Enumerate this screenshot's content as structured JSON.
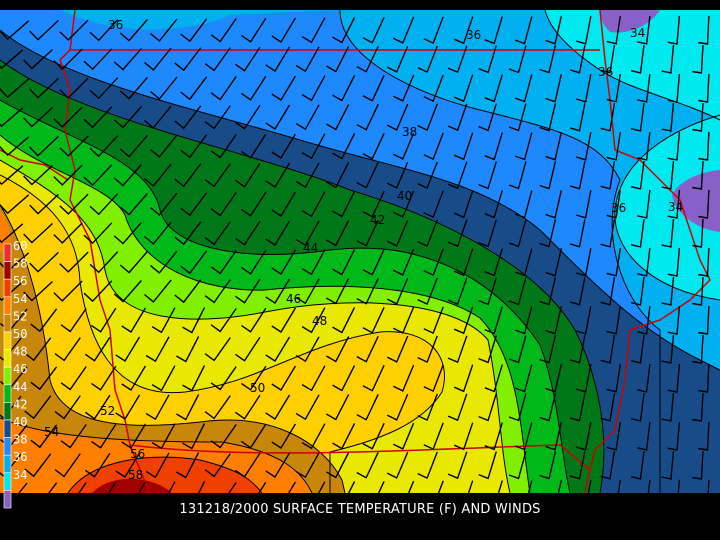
{
  "title": "131218/2000 SURFACE TEMPERATURE (F) AND WINDS",
  "legend": [
    {
      "label": "60",
      "color": "#e83030"
    },
    {
      "label": "58",
      "color": "#a00000"
    },
    {
      "label": "56",
      "color": "#f04000"
    },
    {
      "label": "54",
      "color": "#ff8000"
    },
    {
      "label": "52",
      "color": "#c8860a"
    },
    {
      "label": "50",
      "color": "#ffd000"
    },
    {
      "label": "48",
      "color": "#e8e800"
    },
    {
      "label": "46",
      "color": "#80f000"
    },
    {
      "label": "44",
      "color": "#00b818"
    },
    {
      "label": "42",
      "color": "#007818"
    },
    {
      "label": "40",
      "color": "#184c88"
    },
    {
      "label": "38",
      "color": "#1e88ff"
    },
    {
      "label": "36",
      "color": "#00b0f0"
    },
    {
      "label": "34",
      "color": "#00e8f0"
    },
    {
      "label": "",
      "color": "#8860c8"
    }
  ],
  "contour_labels": [
    "36",
    "36",
    "34",
    "36",
    "38",
    "40",
    "42",
    "44",
    "46",
    "48",
    "50",
    "52",
    "54",
    "56",
    "58",
    "36",
    "34"
  ],
  "colors": {
    "border": "#d00000",
    "contour": "#000000",
    "barb": "#000000"
  }
}
